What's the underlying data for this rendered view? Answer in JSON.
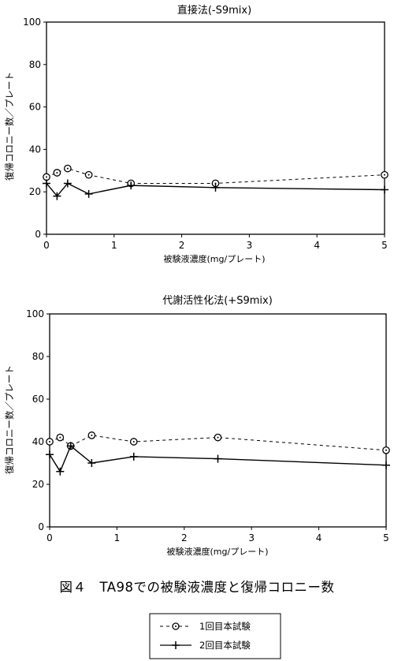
{
  "caption": "図４　TA98での被験液濃度と復帰コロニー数",
  "legend": {
    "series1_label": "1回目本試験",
    "series2_label": "2回目本試験"
  },
  "chart_data": [
    {
      "type": "line",
      "title": "直接法(-S9mix)",
      "xlabel": "被験液濃度(mg/プレート)",
      "ylabel": "復帰コロニー数／プレート",
      "xlim": [
        0,
        5
      ],
      "ylim": [
        0,
        100
      ],
      "xticks": [
        0,
        1,
        2,
        3,
        4,
        5
      ],
      "yticks": [
        0,
        20,
        40,
        60,
        80,
        100
      ],
      "x": [
        0,
        0.156,
        0.313,
        0.625,
        1.25,
        2.5,
        5
      ],
      "series": [
        {
          "name": "1回目本試験",
          "marker": "circle-dot",
          "linestyle": "dashed",
          "values": [
            27,
            29,
            31,
            28,
            24,
            24,
            28
          ]
        },
        {
          "name": "2回目本試験",
          "marker": "plus",
          "linestyle": "solid",
          "values": [
            24,
            18,
            24,
            19,
            23,
            22,
            21
          ]
        }
      ]
    },
    {
      "type": "line",
      "title": "代謝活性化法(+S9mix)",
      "xlabel": "被験液濃度(mg/プレート)",
      "ylabel": "復帰コロニー数／プレート",
      "xlim": [
        0,
        5
      ],
      "ylim": [
        0,
        100
      ],
      "xticks": [
        0,
        1,
        2,
        3,
        4,
        5
      ],
      "yticks": [
        0,
        20,
        40,
        60,
        80,
        100
      ],
      "x": [
        0,
        0.156,
        0.313,
        0.625,
        1.25,
        2.5,
        5
      ],
      "series": [
        {
          "name": "1回目本試験",
          "marker": "circle-dot",
          "linestyle": "dashed",
          "values": [
            40,
            42,
            38,
            43,
            40,
            42,
            36
          ]
        },
        {
          "name": "2回目本試験",
          "marker": "plus",
          "linestyle": "solid",
          "values": [
            34,
            26,
            38,
            30,
            33,
            32,
            29
          ]
        }
      ]
    }
  ]
}
